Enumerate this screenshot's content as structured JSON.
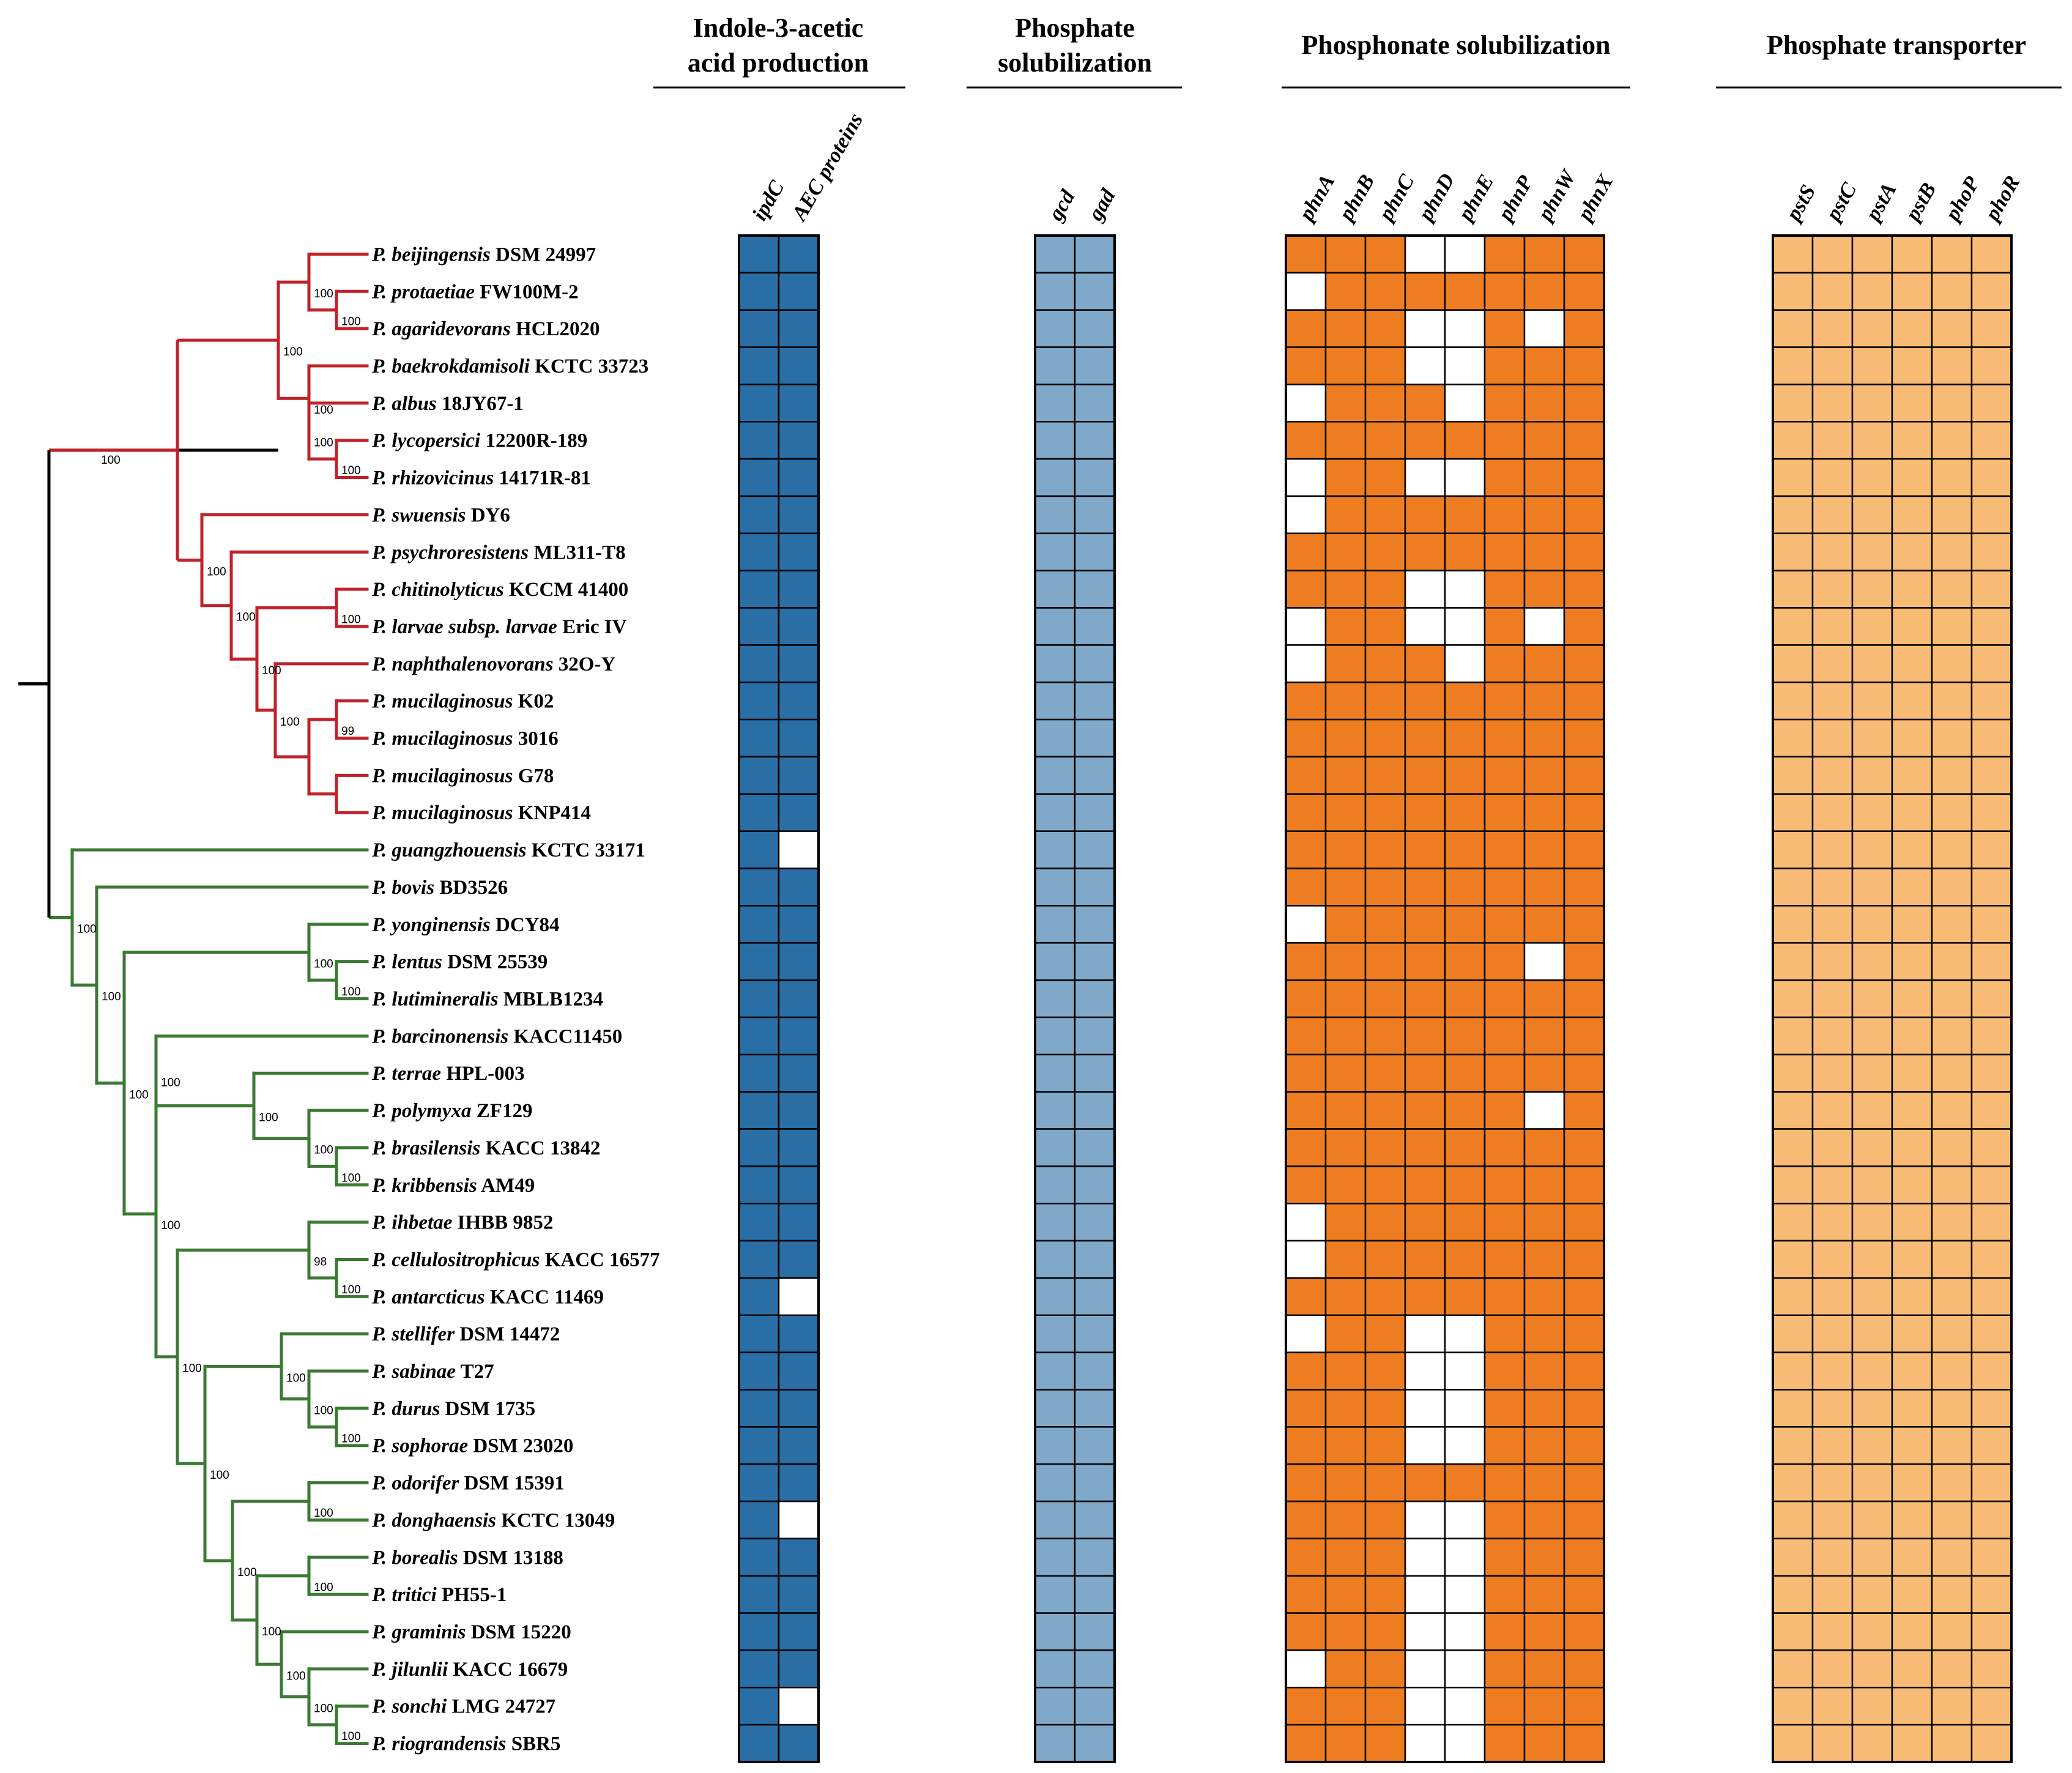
{
  "figure": {
    "groups": [
      {
        "title_lines": [
          "Indole-3-acetic",
          "acid production"
        ],
        "color": "#2a6ea6",
        "genes": [
          "ipdC",
          "AEC proteins"
        ]
      },
      {
        "title_lines": [
          "Phosphate",
          "solubilization"
        ],
        "color": "#80a9c9",
        "genes": [
          "gcd",
          "gad"
        ]
      },
      {
        "title_lines": [
          "Phosphonate solubilization"
        ],
        "color": "#ee7d22",
        "genes": [
          "phnA",
          "phnB",
          "phnC",
          "phnD",
          "phnE",
          "phnP",
          "phnW",
          "phnX"
        ]
      },
      {
        "title_lines": [
          "Phosphate transporter"
        ],
        "color": "#f8bb76",
        "genes": [
          "pstS",
          "pstC",
          "pstA",
          "pstB",
          "phoP",
          "phoR"
        ]
      }
    ],
    "clade_colors": {
      "clade1": "#c0222a",
      "clade2": "#3a7a32",
      "root": "#000000"
    },
    "species": [
      {
        "genus": "P.",
        "epithet": "beijingensis",
        "strain": "DSM 24997",
        "iaa": "11",
        "ps": "11",
        "phn": "11100111",
        "pt": "111111"
      },
      {
        "genus": "P.",
        "epithet": "protaetiae",
        "strain": "FW100M-2",
        "iaa": "11",
        "ps": "11",
        "phn": "01111111",
        "pt": "111111"
      },
      {
        "genus": "P.",
        "epithet": "agaridevorans",
        "strain": "HCL2020",
        "iaa": "11",
        "ps": "11",
        "phn": "11100101",
        "pt": "111111"
      },
      {
        "genus": "P.",
        "epithet": "baekrokdamisoli",
        "strain": "KCTC 33723",
        "iaa": "11",
        "ps": "11",
        "phn": "11100111",
        "pt": "111111"
      },
      {
        "genus": "P.",
        "epithet": "albus",
        "strain": "18JY67-1",
        "iaa": "11",
        "ps": "11",
        "phn": "01110111",
        "pt": "111111"
      },
      {
        "genus": "P.",
        "epithet": "lycopersici",
        "strain": "12200R-189",
        "iaa": "11",
        "ps": "11",
        "phn": "11111111",
        "pt": "111111"
      },
      {
        "genus": "P.",
        "epithet": "rhizovicinus",
        "strain": "14171R-81",
        "iaa": "11",
        "ps": "11",
        "phn": "01100111",
        "pt": "111111"
      },
      {
        "genus": "P.",
        "epithet": "swuensis",
        "strain": "DY6",
        "iaa": "11",
        "ps": "11",
        "phn": "01111111",
        "pt": "111111"
      },
      {
        "genus": "P.",
        "epithet": "psychroresistens",
        "strain": "ML311-T8",
        "iaa": "11",
        "ps": "11",
        "phn": "11111111",
        "pt": "111111"
      },
      {
        "genus": "P.",
        "epithet": "chitinolyticus",
        "strain": "KCCM 41400",
        "iaa": "11",
        "ps": "11",
        "phn": "11100111",
        "pt": "111111"
      },
      {
        "genus": "P.",
        "epithet": "larvae subsp. larvae",
        "strain": "Eric IV",
        "iaa": "11",
        "ps": "11",
        "phn": "01100101",
        "pt": "111111"
      },
      {
        "genus": "P.",
        "epithet": "naphthalenovorans",
        "strain": "32O-Y",
        "iaa": "11",
        "ps": "11",
        "phn": "01110111",
        "pt": "111111"
      },
      {
        "genus": "P.",
        "epithet": "mucilaginosus",
        "strain": "K02",
        "iaa": "11",
        "ps": "11",
        "phn": "11111111",
        "pt": "111111"
      },
      {
        "genus": "P.",
        "epithet": "mucilaginosus",
        "strain": "3016",
        "iaa": "11",
        "ps": "11",
        "phn": "11111111",
        "pt": "111111"
      },
      {
        "genus": "P.",
        "epithet": "mucilaginosus",
        "strain": "G78",
        "iaa": "11",
        "ps": "11",
        "phn": "11111111",
        "pt": "111111"
      },
      {
        "genus": "P.",
        "epithet": "mucilaginosus",
        "strain": "KNP414",
        "iaa": "11",
        "ps": "11",
        "phn": "11111111",
        "pt": "111111"
      },
      {
        "genus": "P.",
        "epithet": "guangzhouensis",
        "strain": "KCTC 33171",
        "iaa": "10",
        "ps": "11",
        "phn": "11111111",
        "pt": "111111"
      },
      {
        "genus": "P.",
        "epithet": "bovis",
        "strain": "BD3526",
        "iaa": "11",
        "ps": "11",
        "phn": "11111111",
        "pt": "111111"
      },
      {
        "genus": "P.",
        "epithet": "yonginensis",
        "strain": "DCY84",
        "iaa": "11",
        "ps": "11",
        "phn": "01111111",
        "pt": "111111"
      },
      {
        "genus": "P.",
        "epithet": "lentus",
        "strain": "DSM 25539",
        "iaa": "11",
        "ps": "11",
        "phn": "11111101",
        "pt": "111111"
      },
      {
        "genus": "P.",
        "epithet": "lutimineralis",
        "strain": "MBLB1234",
        "iaa": "11",
        "ps": "11",
        "phn": "11111111",
        "pt": "111111"
      },
      {
        "genus": "P.",
        "epithet": "barcinonensis",
        "strain": "KACC11450",
        "iaa": "11",
        "ps": "11",
        "phn": "11111111",
        "pt": "111111"
      },
      {
        "genus": "P.",
        "epithet": "terrae",
        "strain": "HPL-003",
        "iaa": "11",
        "ps": "11",
        "phn": "11111111",
        "pt": "111111"
      },
      {
        "genus": "P.",
        "epithet": "polymyxa",
        "strain": "ZF129",
        "iaa": "11",
        "ps": "11",
        "phn": "11111101",
        "pt": "111111"
      },
      {
        "genus": "P.",
        "epithet": "brasilensis",
        "strain": "KACC 13842",
        "iaa": "11",
        "ps": "11",
        "phn": "11111111",
        "pt": "111111"
      },
      {
        "genus": "P.",
        "epithet": "kribbensis",
        "strain": "AM49",
        "iaa": "11",
        "ps": "11",
        "phn": "11111111",
        "pt": "111111"
      },
      {
        "genus": "P.",
        "epithet": "ihbetae",
        "strain": "IHBB 9852",
        "iaa": "11",
        "ps": "11",
        "phn": "01111111",
        "pt": "111111"
      },
      {
        "genus": "P.",
        "epithet": "cellulositrophicus",
        "strain": "KACC 16577",
        "iaa": "11",
        "ps": "11",
        "phn": "01111111",
        "pt": "111111"
      },
      {
        "genus": "P.",
        "epithet": "antarcticus",
        "strain": "KACC 11469",
        "iaa": "10",
        "ps": "11",
        "phn": "11111111",
        "pt": "111111"
      },
      {
        "genus": "P.",
        "epithet": "stellifer",
        "strain": "DSM 14472",
        "iaa": "11",
        "ps": "11",
        "phn": "01100111",
        "pt": "111111"
      },
      {
        "genus": "P.",
        "epithet": "sabinae",
        "strain": "T27",
        "iaa": "11",
        "ps": "11",
        "phn": "11100111",
        "pt": "111111"
      },
      {
        "genus": "P.",
        "epithet": "durus",
        "strain": "DSM 1735",
        "iaa": "11",
        "ps": "11",
        "phn": "11100111",
        "pt": "111111"
      },
      {
        "genus": "P.",
        "epithet": "sophorae",
        "strain": "DSM 23020",
        "iaa": "11",
        "ps": "11",
        "phn": "11100111",
        "pt": "111111"
      },
      {
        "genus": "P.",
        "epithet": "odorifer",
        "strain": "DSM 15391",
        "iaa": "11",
        "ps": "11",
        "phn": "11111111",
        "pt": "111111"
      },
      {
        "genus": "P.",
        "epithet": "donghaensis",
        "strain": "KCTC 13049",
        "iaa": "10",
        "ps": "11",
        "phn": "11100111",
        "pt": "111111"
      },
      {
        "genus": "P.",
        "epithet": "borealis",
        "strain": "DSM 13188",
        "iaa": "11",
        "ps": "11",
        "phn": "11100111",
        "pt": "111111"
      },
      {
        "genus": "P.",
        "epithet": "tritici",
        "strain": "PH55-1",
        "iaa": "11",
        "ps": "11",
        "phn": "11100111",
        "pt": "111111"
      },
      {
        "genus": "P.",
        "epithet": "graminis",
        "strain": "DSM 15220",
        "iaa": "11",
        "ps": "11",
        "phn": "11100111",
        "pt": "111111"
      },
      {
        "genus": "P.",
        "epithet": "jilunlii",
        "strain": "KACC 16679",
        "iaa": "11",
        "ps": "11",
        "phn": "01100111",
        "pt": "111111"
      },
      {
        "genus": "P.",
        "epithet": "sonchi",
        "strain": "LMG 24727",
        "iaa": "10",
        "ps": "11",
        "phn": "11100111",
        "pt": "111111"
      },
      {
        "genus": "P.",
        "epithet": "riograndensis",
        "strain": "SBR5",
        "iaa": "11",
        "ps": "11",
        "phn": "11100111",
        "pt": "111111"
      }
    ],
    "bootstrap": {
      "n1_2": "100",
      "n0_2": "100",
      "n5_6": "100",
      "n4_6": "100",
      "n3_6": "100",
      "n0_6": "100",
      "n9_10": "100",
      "n12_13": "99",
      "n14_15": "",
      "n12_15": "",
      "n11_15": "100",
      "n9_15": "100",
      "n8_15": "100",
      "n7_15": "100",
      "n0_15": "100",
      "n19_20": "100",
      "n18_20": "100",
      "n24_25": "100",
      "n23_25": "100",
      "n22_25": "100",
      "n21_25": "100",
      "n27_28": "100",
      "n26_28": "98",
      "n31_32": "100",
      "n30_32": "100",
      "n29_32": "100",
      "n33_34": "100",
      "n35_36": "100",
      "n39_40": "100",
      "n38_40": "100",
      "n37_40": "100",
      "n35_40": "100",
      "n33_40": "100",
      "n29_40": "100",
      "n26_40": "100",
      "n21_40": "100",
      "n18_40": "100",
      "n17_40": "100",
      "n16_40": "100",
      "root": ""
    }
  }
}
